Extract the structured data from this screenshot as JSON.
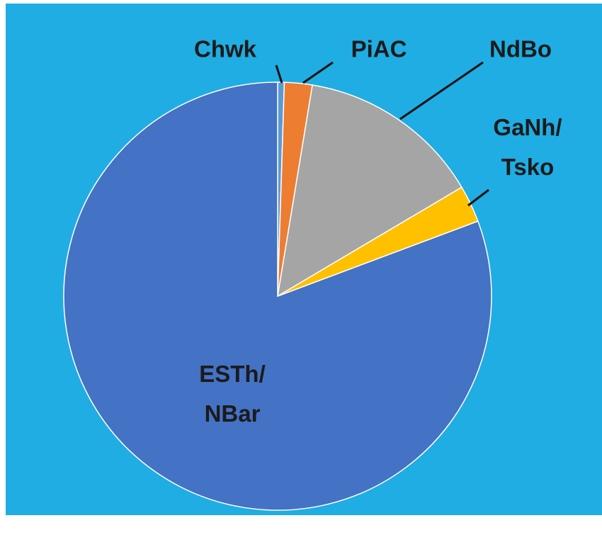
{
  "chart_data": {
    "type": "pie",
    "categories": [
      "Chwk",
      "PiAC",
      "NdBo",
      "GaNh/Tsko",
      "ESTh/NBar"
    ],
    "values": [
      0.5,
      2.1,
      13.9,
      2.8,
      80.7
    ],
    "colors": [
      "#5b9bd5",
      "#ed7d31",
      "#a5a5a5",
      "#ffc000",
      "#4472c4"
    ]
  }
}
